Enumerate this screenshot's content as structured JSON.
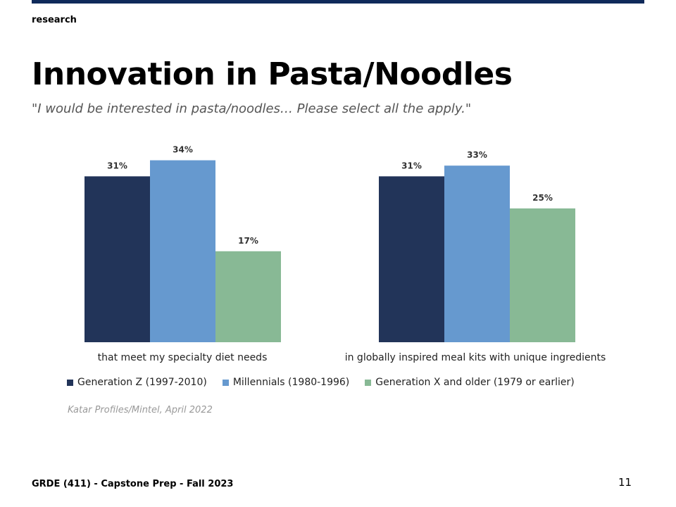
{
  "header": {
    "section": "research"
  },
  "slide": {
    "title": "Innovation in Pasta/Noodles",
    "subtitle": "\"I would be interested in pasta/noodles… Please select all the apply.\"",
    "source": "Katar Profiles/Mintel, April 2022"
  },
  "footer": {
    "course": "GRDE (411) - Capstone Prep - Fall 2023",
    "page": "11"
  },
  "colors": {
    "topbar": "#0f2a5a",
    "genz": "#223459",
    "millennials": "#6699cf",
    "genx": "#88b995"
  },
  "chart_data": {
    "type": "bar",
    "categories": [
      "that meet my specialty diet needs",
      "in globally inspired meal kits with unique ingredients"
    ],
    "series": [
      {
        "name": "Generation Z (1997-2010)",
        "values": [
          31,
          31
        ],
        "color": "#223459"
      },
      {
        "name": "Millennials (1980-1996)",
        "values": [
          34,
          33
        ],
        "color": "#6699cf"
      },
      {
        "name": "Generation X and older (1979 or earlier)",
        "values": [
          17,
          25
        ],
        "color": "#88b995"
      }
    ],
    "value_labels": [
      [
        "31%",
        "31%"
      ],
      [
        "34%",
        "33%"
      ],
      [
        "17%",
        "25%"
      ]
    ],
    "unit": "%",
    "ylim": [
      0,
      40
    ],
    "grid": false,
    "legend": "bottom"
  }
}
